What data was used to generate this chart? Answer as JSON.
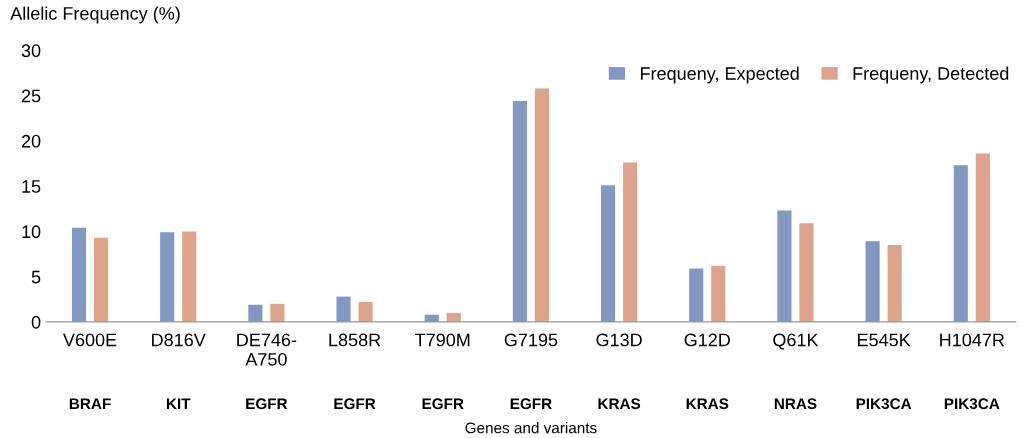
{
  "chart_data": {
    "type": "bar",
    "ylabel": "Allelic Frequency (%)",
    "xlabel": "Genes and variants",
    "categories": [
      "V600E",
      "D816V",
      "DE746-\nA750",
      "L858R",
      "T790M",
      "G7195",
      "G13D",
      "G12D",
      "Q61K",
      "E545K",
      "H1047R"
    ],
    "annotations": [
      "BRAF",
      "KIT",
      "EGFR",
      "EGFR",
      "EGFR",
      "EGFR",
      "KRAS",
      "KRAS",
      "NRAS",
      "PIK3CA",
      "PIK3CA"
    ],
    "series": [
      {
        "name": "Frequeny, Expected",
        "color": "#8199c2",
        "values": [
          10.4,
          9.9,
          1.9,
          2.8,
          0.8,
          24.4,
          15.1,
          5.9,
          12.3,
          8.9,
          17.3
        ]
      },
      {
        "name": "Frequeny, Detected",
        "color": "#dea48b",
        "values": [
          9.3,
          10.0,
          2.0,
          2.2,
          1.0,
          25.8,
          17.6,
          6.2,
          10.9,
          8.5,
          18.6
        ]
      }
    ],
    "ylim": [
      0,
      30
    ],
    "yticks": [
      0,
      5,
      10,
      15,
      20,
      25,
      30
    ],
    "grid": false,
    "legend": "top right"
  }
}
